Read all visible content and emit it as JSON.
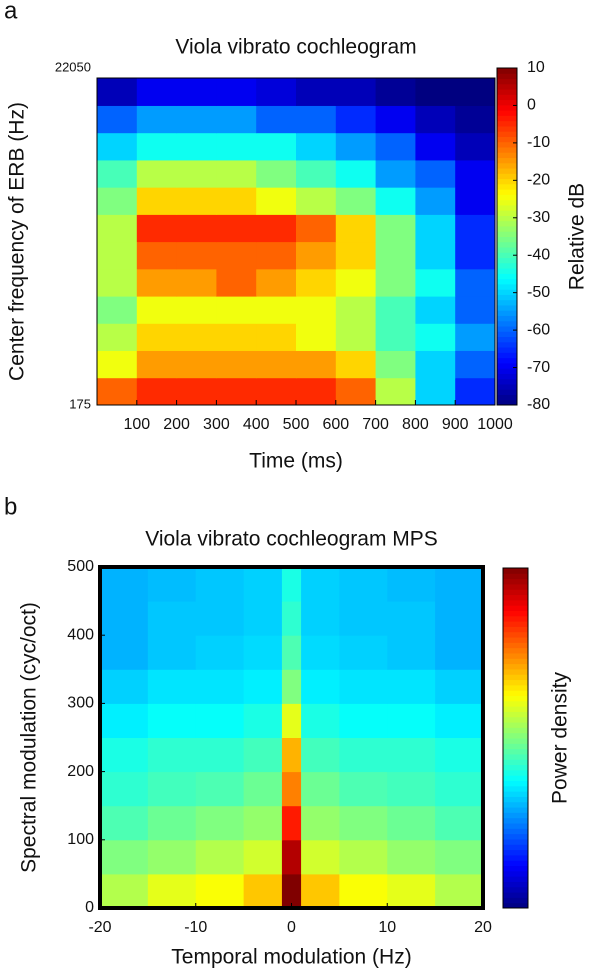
{
  "chart_data": [
    {
      "type": "heatmap",
      "label": "a",
      "title": "Viola vibrato cochleogram",
      "x_label": "Time (ms)",
      "y_label": "Center frequency of ERB (Hz)",
      "colorbar_label": "Relative dB",
      "x_edges": [
        0,
        100,
        200,
        300,
        400,
        500,
        600,
        700,
        800,
        900,
        1000
      ],
      "y_edges": [
        175,
        262,
        392,
        586,
        876,
        1311,
        1961,
        2933,
        4388,
        6564,
        9820,
        14690,
        22050
      ],
      "xlim": [
        0,
        1000
      ],
      "xticks": [
        100,
        200,
        300,
        400,
        500,
        600,
        700,
        800,
        900,
        1000
      ],
      "ylim": [
        175,
        22050
      ],
      "yticks": [
        175,
        22050
      ],
      "ylog": true,
      "clim": [
        -80,
        10
      ],
      "cticks": [
        -80,
        -70,
        -60,
        -50,
        -40,
        -30,
        -20,
        -10,
        0,
        10
      ],
      "colormap": "jet",
      "z": [
        [
          -10,
          -5,
          -5,
          -5,
          -5,
          -5,
          -10,
          -30,
          -50,
          -65
        ],
        [
          -25,
          -15,
          -15,
          -15,
          -15,
          -15,
          -20,
          -35,
          -50,
          -60
        ],
        [
          -30,
          -20,
          -20,
          -20,
          -20,
          -25,
          -30,
          -40,
          -45,
          -55
        ],
        [
          -35,
          -25,
          -25,
          -25,
          -25,
          -25,
          -30,
          -40,
          -50,
          -60
        ],
        [
          -30,
          -15,
          -15,
          -10,
          -15,
          -20,
          -25,
          -35,
          -45,
          -60
        ],
        [
          -30,
          -10,
          -10,
          -10,
          -10,
          -15,
          -20,
          -35,
          -50,
          -65
        ],
        [
          -30,
          -5,
          -5,
          -5,
          -5,
          -10,
          -20,
          -35,
          -50,
          -65
        ],
        [
          -35,
          -20,
          -20,
          -20,
          -25,
          -30,
          -35,
          -45,
          -55,
          -70
        ],
        [
          -40,
          -30,
          -30,
          -30,
          -35,
          -40,
          -45,
          -55,
          -60,
          -70
        ],
        [
          -50,
          -45,
          -45,
          -45,
          -45,
          -50,
          -55,
          -60,
          -70,
          -75
        ],
        [
          -60,
          -55,
          -55,
          -55,
          -60,
          -60,
          -65,
          -70,
          -75,
          -78
        ],
        [
          -75,
          -70,
          -70,
          -70,
          -72,
          -75,
          -75,
          -78,
          -80,
          -80
        ]
      ]
    },
    {
      "type": "heatmap",
      "label": "b",
      "title": "Viola vibrato cochleogram MPS",
      "x_label": "Temporal modulation (Hz)",
      "y_label": "Spectral modulation (cyc/oct)",
      "colorbar_label": "Power density",
      "x_edges": [
        -20,
        -15,
        -10,
        -5,
        -1,
        1,
        5,
        10,
        15,
        20
      ],
      "y_edges": [
        0,
        50,
        100,
        150,
        200,
        250,
        300,
        350,
        400,
        450,
        500
      ],
      "xlim": [
        -20,
        20
      ],
      "xticks": [
        -20,
        -10,
        0,
        10,
        20
      ],
      "ylim": [
        0,
        500
      ],
      "yticks": [
        0,
        100,
        200,
        300,
        400,
        500
      ],
      "ylog": false,
      "clim": [
        0,
        1
      ],
      "colormap": "jet",
      "z": [
        [
          0.55,
          0.6,
          0.62,
          0.68,
          1.0,
          0.68,
          0.62,
          0.6,
          0.55
        ],
        [
          0.5,
          0.52,
          0.55,
          0.58,
          0.95,
          0.58,
          0.55,
          0.52,
          0.5
        ],
        [
          0.45,
          0.48,
          0.5,
          0.52,
          0.85,
          0.52,
          0.5,
          0.48,
          0.45
        ],
        [
          0.42,
          0.44,
          0.45,
          0.48,
          0.75,
          0.48,
          0.45,
          0.44,
          0.42
        ],
        [
          0.4,
          0.42,
          0.42,
          0.44,
          0.7,
          0.44,
          0.42,
          0.42,
          0.4
        ],
        [
          0.36,
          0.38,
          0.38,
          0.4,
          0.6,
          0.4,
          0.38,
          0.38,
          0.36
        ],
        [
          0.33,
          0.35,
          0.35,
          0.36,
          0.5,
          0.36,
          0.35,
          0.35,
          0.33
        ],
        [
          0.3,
          0.32,
          0.33,
          0.34,
          0.45,
          0.34,
          0.33,
          0.32,
          0.3
        ],
        [
          0.3,
          0.32,
          0.32,
          0.33,
          0.42,
          0.33,
          0.32,
          0.32,
          0.3
        ],
        [
          0.3,
          0.31,
          0.32,
          0.33,
          0.4,
          0.33,
          0.32,
          0.31,
          0.3
        ]
      ]
    }
  ]
}
